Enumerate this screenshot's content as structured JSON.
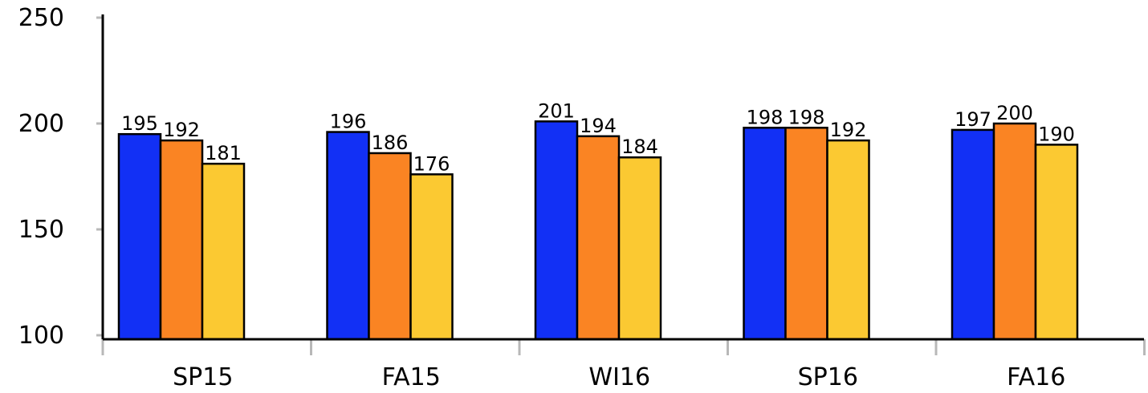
{
  "chart_data": {
    "type": "bar",
    "title": "",
    "xlabel": "",
    "ylabel": "",
    "categories": [
      "SP15",
      "FA15",
      "WI16",
      "SP16",
      "FA16"
    ],
    "series": [
      {
        "color": "#1230F5",
        "values": [
          195,
          196,
          201,
          198,
          197
        ]
      },
      {
        "color": "#FA8423",
        "values": [
          192,
          186,
          194,
          198,
          200
        ]
      },
      {
        "color": "#FBC932",
        "values": [
          181,
          176,
          184,
          192,
          190
        ]
      }
    ],
    "ylim": [
      100,
      250
    ],
    "yticks": [
      100,
      150,
      200,
      250
    ],
    "grid": false,
    "legend": "none"
  }
}
